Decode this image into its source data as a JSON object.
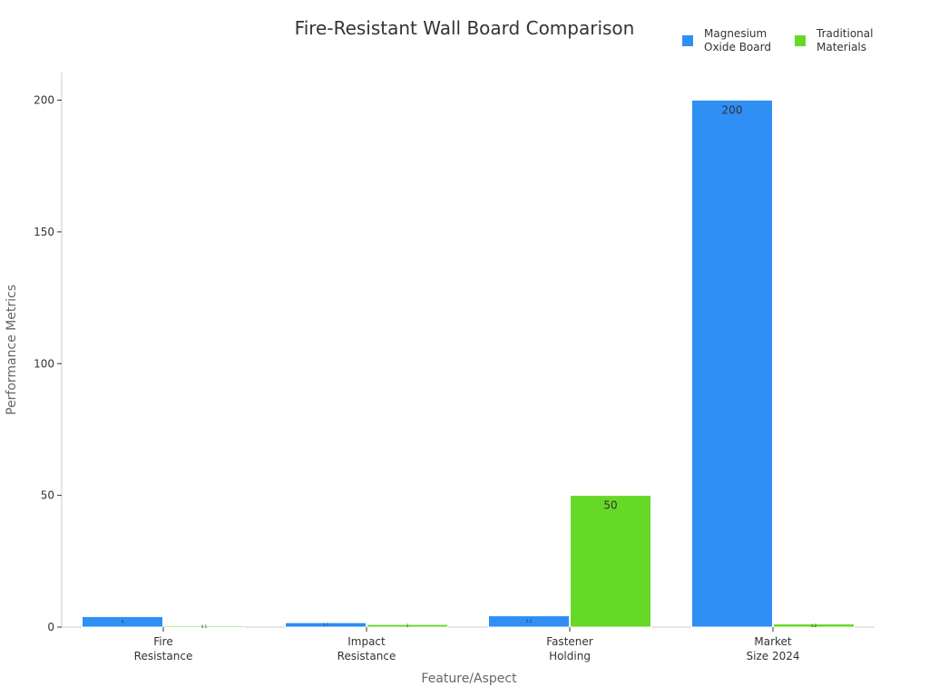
{
  "chart_data": {
    "type": "bar",
    "title": "Fire-Resistant Wall Board Comparison",
    "xlabel": "Feature/Aspect",
    "ylabel": "Performance Metrics",
    "categories": [
      [
        "Fire",
        "Resistance"
      ],
      [
        "Impact",
        "Resistance"
      ],
      [
        "Fastener",
        "Holding"
      ],
      [
        "Market",
        "Size 2024"
      ]
    ],
    "series": [
      {
        "name": "Magnesium Oxide Board",
        "name_lines": [
          "Magnesium",
          "Oxide Board"
        ],
        "color": "#2f8ff5",
        "values": [
          4,
          1.7,
          4.3,
          200
        ],
        "labels": [
          "4",
          "1.7",
          "4.3",
          "200"
        ]
      },
      {
        "name": "Traditional Materials",
        "name_lines": [
          "Traditional",
          "Materials"
        ],
        "color": "#66d926",
        "values": [
          0.5,
          1,
          50,
          1.2
        ],
        "labels": [
          "0.5",
          "1",
          "50",
          "1.2"
        ]
      }
    ],
    "ylim": [
      0,
      210
    ],
    "yticks": [
      0,
      50,
      100,
      150,
      200
    ],
    "grid": false,
    "legend_position": "top-right"
  }
}
